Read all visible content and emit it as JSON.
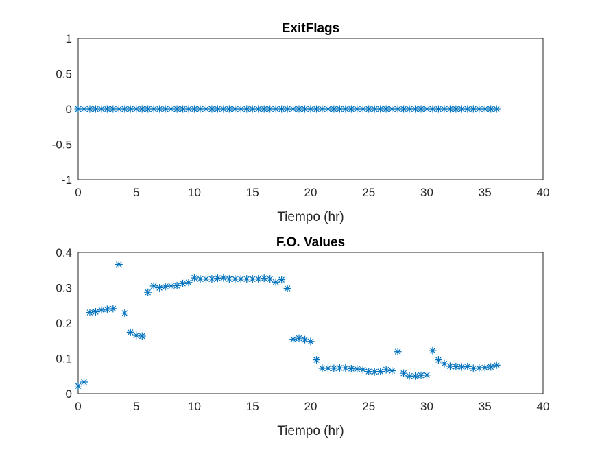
{
  "colors": {
    "marker": "#0072BD",
    "grid": "#dcdcdc",
    "axis": "#262626"
  },
  "chart_data": [
    {
      "type": "scatter",
      "title": "ExitFlags",
      "xlabel": "Tiempo (hr)",
      "ylabel": "",
      "xlim": [
        0,
        40
      ],
      "ylim": [
        -1,
        1
      ],
      "xticks": [
        0,
        5,
        10,
        15,
        20,
        25,
        30,
        35,
        40
      ],
      "yticks": [
        -1,
        -0.5,
        0,
        0.5,
        1
      ],
      "xtick_labels": [
        "0",
        "5",
        "10",
        "15",
        "20",
        "25",
        "30",
        "35",
        "40"
      ],
      "ytick_labels": [
        "-1",
        "-0.5",
        "0",
        "0.5",
        "1"
      ],
      "grid": true,
      "marker": "*",
      "series": [
        {
          "x": [
            0,
            0.5,
            1,
            1.5,
            2,
            2.5,
            3,
            3.5,
            4,
            4.5,
            5,
            5.5,
            6,
            6.5,
            7,
            7.5,
            8,
            8.5,
            9,
            9.5,
            10,
            10.5,
            11,
            11.5,
            12,
            12.5,
            13,
            13.5,
            14,
            14.5,
            15,
            15.5,
            16,
            16.5,
            17,
            17.5,
            18,
            18.5,
            19,
            19.5,
            20,
            20.5,
            21,
            21.5,
            22,
            22.5,
            23,
            23.5,
            24,
            24.5,
            25,
            25.5,
            26,
            26.5,
            27,
            27.5,
            28,
            28.5,
            29,
            29.5,
            30,
            30.5,
            31,
            31.5,
            32,
            32.5,
            33,
            33.5,
            34,
            34.5,
            35,
            35.5,
            36
          ],
          "y": [
            0,
            0,
            0,
            0,
            0,
            0,
            0,
            0,
            0,
            0,
            0,
            0,
            0,
            0,
            0,
            0,
            0,
            0,
            0,
            0,
            0,
            0,
            0,
            0,
            0,
            0,
            0,
            0,
            0,
            0,
            0,
            0,
            0,
            0,
            0,
            0,
            0,
            0,
            0,
            0,
            0,
            0,
            0,
            0,
            0,
            0,
            0,
            0,
            0,
            0,
            0,
            0,
            0,
            0,
            0,
            0,
            0,
            0,
            0,
            0,
            0,
            0,
            0,
            0,
            0,
            0,
            0,
            0,
            0,
            0,
            0,
            0,
            0
          ]
        }
      ]
    },
    {
      "type": "scatter",
      "title": "F.O. Values",
      "xlabel": "Tiempo (hr)",
      "ylabel": "",
      "xlim": [
        0,
        40
      ],
      "ylim": [
        0,
        0.4
      ],
      "xticks": [
        0,
        5,
        10,
        15,
        20,
        25,
        30,
        35,
        40
      ],
      "yticks": [
        0,
        0.1,
        0.2,
        0.3,
        0.4
      ],
      "xtick_labels": [
        "0",
        "5",
        "10",
        "15",
        "20",
        "25",
        "30",
        "35",
        "40"
      ],
      "ytick_labels": [
        "0",
        "0.1",
        "0.2",
        "0.3",
        "0.4"
      ],
      "grid": true,
      "marker": "*",
      "series": [
        {
          "x": [
            0,
            0.5,
            1,
            1.5,
            2,
            2.5,
            3,
            3.5,
            4,
            4.5,
            5,
            5.5,
            6,
            6.5,
            7,
            7.5,
            8,
            8.5,
            9,
            9.5,
            10,
            10.5,
            11,
            11.5,
            12,
            12.5,
            13,
            13.5,
            14,
            14.5,
            15,
            15.5,
            16,
            16.5,
            17,
            17.5,
            18,
            18.5,
            19,
            19.5,
            20,
            20.5,
            21,
            21.5,
            22,
            22.5,
            23,
            23.5,
            24,
            24.5,
            25,
            25.5,
            26,
            26.5,
            27,
            27.5,
            28,
            28.5,
            29,
            29.5,
            30,
            30.5,
            31,
            31.5,
            32,
            32.5,
            33,
            33.5,
            34,
            34.5,
            35,
            35.5,
            36
          ],
          "y": [
            0.022,
            0.033,
            0.23,
            0.232,
            0.237,
            0.239,
            0.241,
            0.366,
            0.228,
            0.174,
            0.165,
            0.163,
            0.287,
            0.305,
            0.3,
            0.303,
            0.305,
            0.306,
            0.312,
            0.315,
            0.328,
            0.325,
            0.325,
            0.325,
            0.327,
            0.328,
            0.325,
            0.325,
            0.325,
            0.325,
            0.325,
            0.325,
            0.327,
            0.325,
            0.316,
            0.323,
            0.298,
            0.154,
            0.157,
            0.153,
            0.148,
            0.096,
            0.072,
            0.072,
            0.072,
            0.073,
            0.073,
            0.071,
            0.07,
            0.068,
            0.063,
            0.062,
            0.063,
            0.068,
            0.065,
            0.119,
            0.058,
            0.05,
            0.05,
            0.052,
            0.053,
            0.122,
            0.096,
            0.085,
            0.078,
            0.077,
            0.076,
            0.077,
            0.072,
            0.073,
            0.074,
            0.076,
            0.081
          ]
        }
      ]
    }
  ]
}
